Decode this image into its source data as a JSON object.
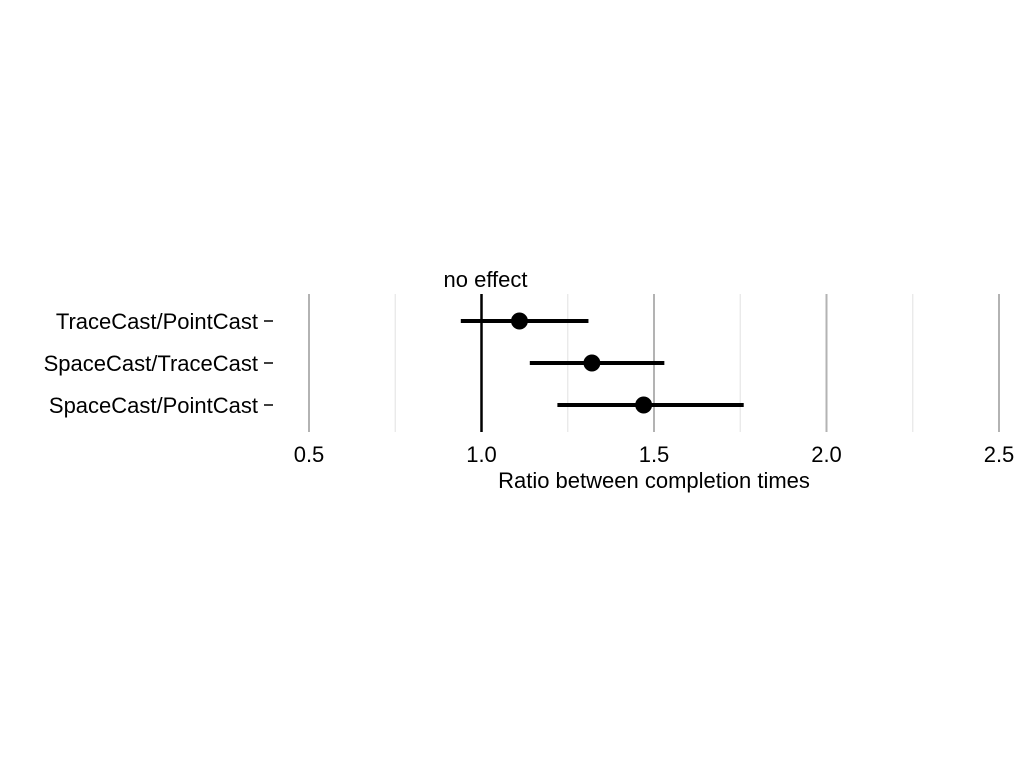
{
  "chart_data": {
    "type": "dot-interval",
    "orientation": "horizontal",
    "xlabel": "Ratio between completion times",
    "ylabel": "",
    "xlim": [
      0.5,
      2.5
    ],
    "x_ticks": [
      {
        "value": 0.5,
        "label": "0.5"
      },
      {
        "value": 1.0,
        "label": "1.0"
      },
      {
        "value": 1.5,
        "label": "1.5"
      },
      {
        "value": 2.0,
        "label": "2.0"
      },
      {
        "value": 2.5,
        "label": "2.5"
      }
    ],
    "minor_gridlines": [
      0.75,
      1.25,
      1.75,
      2.25
    ],
    "grid": true,
    "reference_line": {
      "value": 1.0,
      "label": "no effect"
    },
    "categories": [
      "TraceCast/PointCast",
      "SpaceCast/TraceCast",
      "SpaceCast/PointCast"
    ],
    "estimates": [
      1.11,
      1.32,
      1.47
    ],
    "ci_lower": [
      0.94,
      1.14,
      1.22
    ],
    "ci_upper": [
      1.31,
      1.53,
      1.76
    ],
    "colors": {
      "mark": "#000000",
      "major_grid": "#b3b3b3",
      "minor_grid": "#e6e6e6"
    }
  }
}
